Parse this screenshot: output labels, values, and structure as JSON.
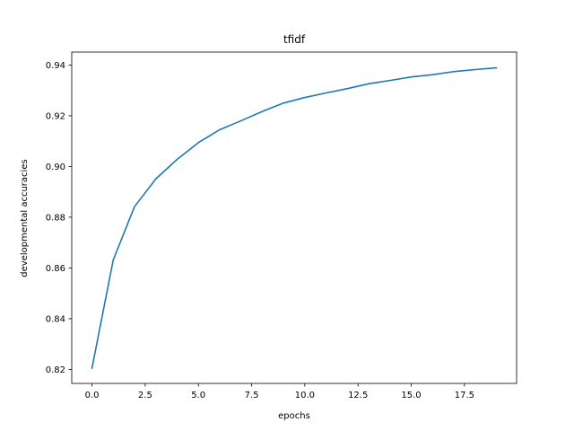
{
  "chart_data": {
    "type": "line",
    "title": "tfidf",
    "xlabel": "epochs",
    "ylabel": "developmental accuracies",
    "xlim": [
      -0.95,
      19.95
    ],
    "ylim": [
      0.8145,
      0.9451
    ],
    "xticks": [
      0.0,
      2.5,
      5.0,
      7.5,
      10.0,
      12.5,
      15.0,
      17.5
    ],
    "xtick_labels": [
      "0.0",
      "2.5",
      "5.0",
      "7.5",
      "10.0",
      "12.5",
      "15.0",
      "17.5"
    ],
    "yticks": [
      0.82,
      0.84,
      0.86,
      0.88,
      0.9,
      0.92,
      0.94
    ],
    "ytick_labels": [
      "0.82",
      "0.84",
      "0.86",
      "0.88",
      "0.90",
      "0.92",
      "0.94"
    ],
    "grid": false,
    "series": [
      {
        "name": "tfidf",
        "color": "#1f77b4",
        "x": [
          0,
          1,
          2,
          3,
          4,
          5,
          6,
          7,
          8,
          9,
          10,
          11,
          12,
          13,
          14,
          15,
          16,
          17,
          18,
          19
        ],
        "values": [
          0.8205,
          0.8632,
          0.8842,
          0.8951,
          0.9028,
          0.9094,
          0.9145,
          0.918,
          0.9217,
          0.925,
          0.9272,
          0.929,
          0.9307,
          0.9326,
          0.9339,
          0.9353,
          0.9362,
          0.9374,
          0.9382,
          0.9389
        ]
      }
    ]
  }
}
